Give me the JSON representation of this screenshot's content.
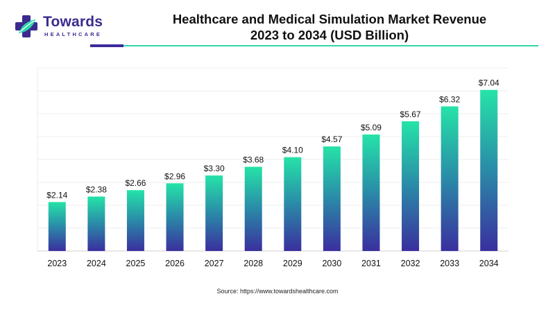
{
  "brand": {
    "name": "Towards",
    "sub": "HEALTHCARE",
    "colors": {
      "primary": "#3b2a8f",
      "accent": "#2fd7a8"
    }
  },
  "title_line1": "Healthcare and Medical Simulation Market Revenue",
  "title_line2": "2023 to 2034 (USD Billion)",
  "source": "Source: https://www.towardshealthcare.com",
  "chart_data": {
    "type": "bar",
    "categories": [
      "2023",
      "2024",
      "2025",
      "2026",
      "2027",
      "2028",
      "2029",
      "2030",
      "2031",
      "2032",
      "2033",
      "2034"
    ],
    "values": [
      2.14,
      2.38,
      2.66,
      2.96,
      3.3,
      3.68,
      4.1,
      4.57,
      5.09,
      5.67,
      6.32,
      7.04
    ],
    "labels": [
      "$2.14",
      "$2.38",
      "$2.66",
      "$2.96",
      "$3.30",
      "$3.68",
      "$4.10",
      "$4.57",
      "$5.09",
      "$5.67",
      "$6.32",
      "$7.04"
    ],
    "ylim": [
      0,
      8
    ],
    "grid": true,
    "gradient": {
      "top": "#25e3a8",
      "middle": "#2a8aa8",
      "bottom": "#3a2f9e"
    }
  }
}
